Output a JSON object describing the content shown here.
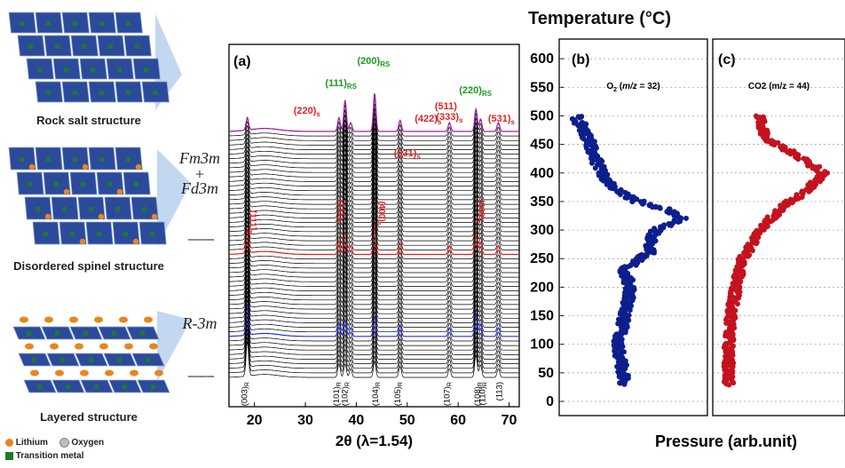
{
  "figure_title": "Temperature (°C)",
  "structures": [
    {
      "caption": "Rock salt structure"
    },
    {
      "caption": "Disordered spinel structure"
    },
    {
      "caption": "Layered structure"
    }
  ],
  "phase_labels": {
    "top": "Fm3m",
    "plus": "+",
    "mid": "Fd3m",
    "bottom": "R-3m"
  },
  "dashes": "--------",
  "legend": {
    "lithium": "Lithium",
    "oxygen": "Oxygen",
    "tm": "Transition metal"
  },
  "colors": {
    "lithium": "#e8861c",
    "oxygen": "#bdbdbd",
    "tm": "#1d7a2c",
    "octahedra": "#2c4a9a",
    "rs_label": "#1b9a1b",
    "spinel_label": "#e02424",
    "xrd_black": "#000000",
    "xrd_red": "#e31b1b",
    "xrd_blue": "#2233dd",
    "xrd_purple": "#a020a0",
    "o2": "#0d1f8c",
    "co2": "#c4121f"
  },
  "chart_data": [
    {
      "type": "line",
      "panel": "(a)",
      "xlabel": "2θ (λ=1.54)",
      "xlim": [
        15,
        72
      ],
      "xticks": [
        20,
        30,
        40,
        50,
        60,
        70
      ],
      "series_count": 55,
      "highlighted_series": {
        "blue_index": 9,
        "red_index": 27,
        "purple_index": 54
      },
      "peaks": [
        {
          "pos": 18.6,
          "h": 1.0
        },
        {
          "pos": 36.6,
          "h": 0.55
        },
        {
          "pos": 37.8,
          "h": 0.9
        },
        {
          "pos": 38.9,
          "h": 0.35
        },
        {
          "pos": 43.6,
          "h": 1.1
        },
        {
          "pos": 48.6,
          "h": 0.45
        },
        {
          "pos": 58.3,
          "h": 0.35
        },
        {
          "pos": 63.5,
          "h": 0.9
        },
        {
          "pos": 64.4,
          "h": 0.5
        },
        {
          "pos": 67.9,
          "h": 0.35
        }
      ],
      "bottom_labels": [
        "(003)R",
        "(101)R",
        "(102)R",
        "(104)R",
        "(105)R",
        "(107)R",
        "(108)R",
        "(110)R",
        "(113)"
      ],
      "bottom_label_positions": [
        18.6,
        36.6,
        38.3,
        44.3,
        48.6,
        58.3,
        64.3,
        65.3,
        68.6
      ],
      "rs_labels": [
        "(111)RS",
        "(200)RS",
        "(220)RS"
      ],
      "rs_label_positions": [
        37.0,
        43.4,
        63.4
      ],
      "spinel_labels_top": [
        "(220)s",
        "(511)",
        "(333)s",
        "(422)s",
        "(331)s",
        "(531)s"
      ],
      "spinel_labels_top_positions": [
        30.3,
        57.6,
        58.3,
        54.1,
        50.0,
        68.5
      ],
      "spinel_labels_mid": [
        "(111)s",
        "(311)s",
        "(400)s",
        "(440)s"
      ],
      "spinel_labels_mid_positions": [
        19.2,
        36.4,
        44.5,
        64.0
      ]
    },
    {
      "type": "scatter",
      "panel": "(b)",
      "title": "O2 (m/z = 32)",
      "ylabel": "Temperature (°C)",
      "ylim": [
        0,
        650
      ],
      "yticks": [
        0,
        50,
        100,
        150,
        200,
        250,
        300,
        350,
        400,
        450,
        500,
        550,
        600,
        650
      ],
      "profile": [
        [
          30,
          0.45
        ],
        [
          100,
          0.4
        ],
        [
          150,
          0.45
        ],
        [
          200,
          0.5
        ],
        [
          230,
          0.45
        ],
        [
          260,
          0.65
        ],
        [
          300,
          0.7
        ],
        [
          320,
          0.92
        ],
        [
          335,
          0.82
        ],
        [
          350,
          0.55
        ],
        [
          380,
          0.32
        ],
        [
          420,
          0.22
        ],
        [
          460,
          0.15
        ],
        [
          500,
          0.05
        ]
      ]
    },
    {
      "type": "scatter",
      "panel": "(c)",
      "title": "CO2 (m/z = 44)",
      "xlabel": "Pressure (arb.unit)",
      "ylim": [
        0,
        650
      ],
      "profile": [
        [
          30,
          0.05
        ],
        [
          100,
          0.05
        ],
        [
          150,
          0.07
        ],
        [
          200,
          0.12
        ],
        [
          250,
          0.18
        ],
        [
          300,
          0.35
        ],
        [
          340,
          0.55
        ],
        [
          370,
          0.8
        ],
        [
          400,
          0.95
        ],
        [
          430,
          0.7
        ],
        [
          460,
          0.4
        ],
        [
          500,
          0.35
        ]
      ]
    }
  ]
}
